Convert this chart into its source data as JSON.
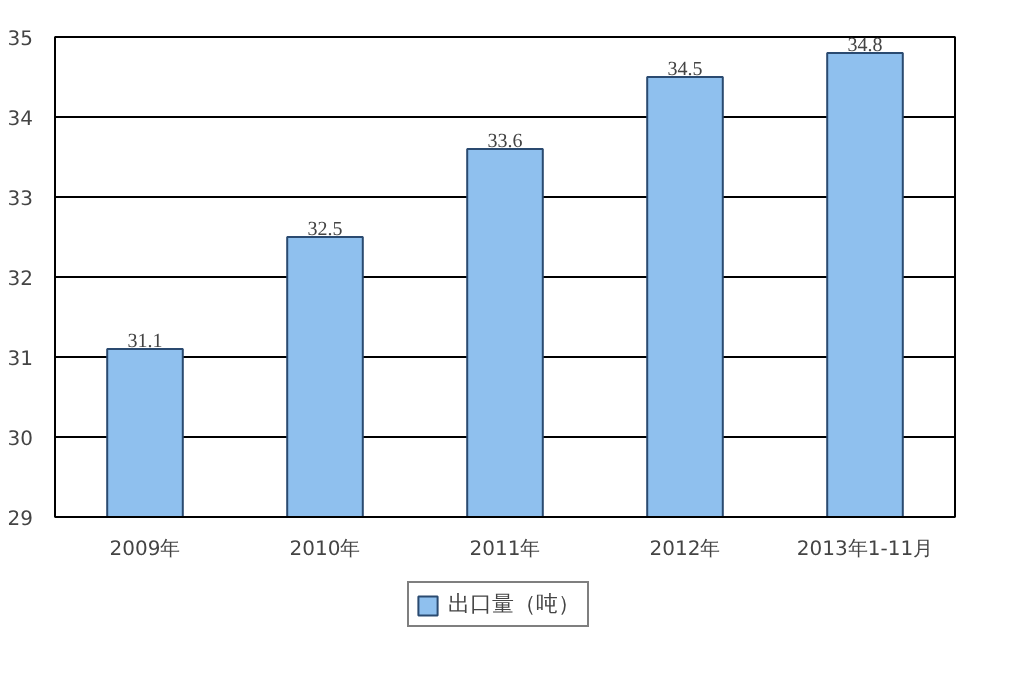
{
  "chart_data": {
    "type": "bar",
    "categories": [
      "2009年",
      "2010年",
      "2011年",
      "2012年",
      "2013年1-11月"
    ],
    "series": [
      {
        "name": "出口量（吨）",
        "color": "#8fc0ee",
        "values": [
          31.1,
          32.5,
          33.6,
          34.5,
          34.8
        ]
      }
    ],
    "ylim": [
      29,
      35
    ],
    "yticks": [
      29,
      30,
      31,
      32,
      33,
      34,
      35
    ],
    "grid": "y",
    "legend": "bottom",
    "data_labels": true
  }
}
